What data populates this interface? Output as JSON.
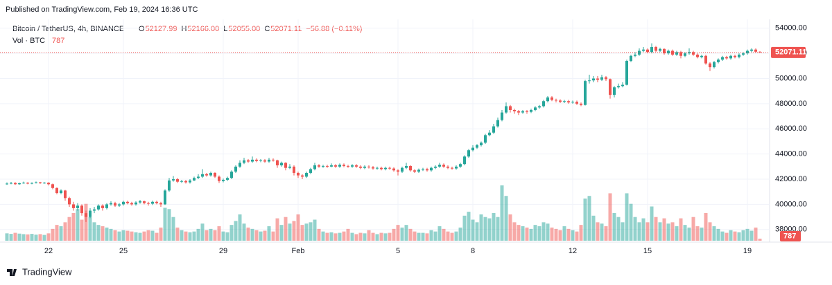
{
  "header": {
    "published": "Published on TradingView.com, Feb 19, 2024 16:36 UTC",
    "symbol": "Bitcoin / TetherUS, 4h, BINANCE",
    "ohlc_letters": [
      "O",
      "H",
      "L",
      "C"
    ],
    "ohlc_text": [
      "52127.99",
      "52166.00",
      "52055.00",
      "52071.11"
    ],
    "change": "−56.88 (−0.11%)",
    "vol_label": "Vol · BTC",
    "vol_text": "787"
  },
  "footer": {
    "brand": "TradingView"
  },
  "chart_data": {
    "type": "candlestick",
    "up_color": "#26a69a",
    "down_color": "#ef5350",
    "ylim": [
      37000,
      54700
    ],
    "yticks": [
      {
        "value": 38000,
        "label": "38000.00"
      },
      {
        "value": 40000,
        "label": "40000.00"
      },
      {
        "value": 42000,
        "label": "42000.00"
      },
      {
        "value": 44000,
        "label": "44000.00"
      },
      {
        "value": 46000,
        "label": "46000.00"
      },
      {
        "value": 48000,
        "label": "48000.00"
      },
      {
        "value": 50000,
        "label": "50000.00"
      },
      {
        "value": 52000,
        "label": "52000.00"
      },
      {
        "value": 54000,
        "label": "54000.00"
      }
    ],
    "xticks": [
      {
        "value": 10,
        "label": "22"
      },
      {
        "value": 28,
        "label": "25"
      },
      {
        "value": 52,
        "label": "29"
      },
      {
        "value": 70,
        "label": "Feb"
      },
      {
        "value": 94,
        "label": "5"
      },
      {
        "value": 112,
        "label": "8"
      },
      {
        "value": 136,
        "label": "12"
      },
      {
        "value": 154,
        "label": "15"
      },
      {
        "value": 178,
        "label": "19"
      }
    ],
    "candles": [
      [
        41600,
        41750,
        41550,
        41650
      ],
      [
        41650,
        41780,
        41600,
        41700
      ],
      [
        41700,
        41760,
        41550,
        41600
      ],
      [
        41600,
        41730,
        41560,
        41680
      ],
      [
        41680,
        41800,
        41640,
        41720
      ],
      [
        41720,
        41760,
        41600,
        41650
      ],
      [
        41650,
        41750,
        41600,
        41700
      ],
      [
        41700,
        41820,
        41660,
        41750
      ],
      [
        41750,
        41790,
        41630,
        41680
      ],
      [
        41680,
        41770,
        41640,
        41720
      ],
      [
        41720,
        41760,
        41500,
        41600
      ],
      [
        41600,
        41650,
        41200,
        41300
      ],
      [
        41300,
        41350,
        40800,
        40900
      ],
      [
        40900,
        41200,
        40800,
        41100
      ],
      [
        41100,
        41150,
        40300,
        40500
      ],
      [
        40500,
        40600,
        39800,
        40000
      ],
      [
        40000,
        40200,
        39500,
        39700
      ],
      [
        39700,
        40100,
        39500,
        39900
      ],
      [
        39900,
        40000,
        39100,
        39300
      ],
      [
        39300,
        39500,
        38600,
        39000
      ],
      [
        39000,
        39700,
        38900,
        39500
      ],
      [
        39500,
        39800,
        39300,
        39600
      ],
      [
        39600,
        40000,
        39500,
        39900
      ],
      [
        39900,
        40000,
        39500,
        39700
      ],
      [
        39700,
        40100,
        39600,
        40000
      ],
      [
        40000,
        40250,
        39900,
        40100
      ],
      [
        40100,
        40200,
        39800,
        39900
      ],
      [
        39900,
        40100,
        39800,
        40000
      ],
      [
        40000,
        40300,
        39900,
        40200
      ],
      [
        40200,
        40300,
        40000,
        40100
      ],
      [
        40100,
        40200,
        39900,
        40000
      ],
      [
        40000,
        40250,
        39900,
        40150
      ],
      [
        40150,
        40350,
        40050,
        40250
      ],
      [
        40250,
        40300,
        40000,
        40100
      ],
      [
        40100,
        40200,
        39900,
        40050
      ],
      [
        40050,
        40300,
        39950,
        40200
      ],
      [
        40200,
        40300,
        40000,
        40100
      ],
      [
        40100,
        40200,
        39800,
        40000
      ],
      [
        40000,
        41200,
        39950,
        41100
      ],
      [
        41100,
        42100,
        41000,
        41900
      ],
      [
        41900,
        42250,
        41800,
        42000
      ],
      [
        42000,
        42100,
        41700,
        41800
      ],
      [
        41800,
        41950,
        41700,
        41850
      ],
      [
        41850,
        41950,
        41650,
        41750
      ],
      [
        41750,
        42000,
        41650,
        41900
      ],
      [
        41900,
        42200,
        41850,
        42100
      ],
      [
        42100,
        42400,
        42000,
        42200
      ],
      [
        42200,
        42800,
        42100,
        42400
      ],
      [
        42400,
        42500,
        42200,
        42300
      ],
      [
        42300,
        42600,
        42200,
        42500
      ],
      [
        42500,
        42550,
        42100,
        42200
      ],
      [
        42200,
        42300,
        41700,
        41850
      ],
      [
        41850,
        42050,
        41750,
        41950
      ],
      [
        41950,
        42200,
        41850,
        42100
      ],
      [
        42100,
        42700,
        42000,
        42600
      ],
      [
        42600,
        43100,
        42500,
        43000
      ],
      [
        43000,
        43500,
        42900,
        43300
      ],
      [
        43300,
        43700,
        43200,
        43500
      ],
      [
        43500,
        43600,
        43300,
        43400
      ],
      [
        43400,
        43800,
        43300,
        43550
      ],
      [
        43550,
        43650,
        43350,
        43450
      ],
      [
        43450,
        43600,
        43350,
        43500
      ],
      [
        43500,
        43600,
        43300,
        43400
      ],
      [
        43400,
        43700,
        43300,
        43550
      ],
      [
        43550,
        43650,
        43400,
        43500
      ],
      [
        43500,
        43550,
        42900,
        43100
      ],
      [
        43100,
        43400,
        43000,
        43300
      ],
      [
        43300,
        43350,
        42700,
        42900
      ],
      [
        42900,
        43200,
        42800,
        43000
      ],
      [
        43000,
        43100,
        42300,
        42500
      ],
      [
        42500,
        42600,
        42100,
        42300
      ],
      [
        42300,
        42400,
        42000,
        42200
      ],
      [
        42200,
        42600,
        42100,
        42500
      ],
      [
        42500,
        42900,
        42400,
        42800
      ],
      [
        42800,
        43300,
        42700,
        43100
      ],
      [
        43100,
        43200,
        42900,
        43000
      ],
      [
        43000,
        43150,
        42900,
        43050
      ],
      [
        43050,
        43150,
        42900,
        43000
      ],
      [
        43000,
        43250,
        42950,
        43100
      ],
      [
        43100,
        43200,
        42900,
        43000
      ],
      [
        43000,
        43250,
        42900,
        43150
      ],
      [
        43150,
        43250,
        42950,
        43050
      ],
      [
        43050,
        43150,
        42900,
        43000
      ],
      [
        43000,
        43200,
        42900,
        43100
      ],
      [
        43100,
        43200,
        42900,
        43000
      ],
      [
        43000,
        43100,
        42800,
        42900
      ],
      [
        42900,
        43100,
        42800,
        43000
      ],
      [
        43000,
        43100,
        42850,
        42950
      ],
      [
        42950,
        43050,
        42750,
        42850
      ],
      [
        42850,
        43000,
        42750,
        42900
      ],
      [
        42900,
        43000,
        42700,
        42800
      ],
      [
        42800,
        43000,
        42700,
        42900
      ],
      [
        42900,
        43000,
        42750,
        42850
      ],
      [
        42850,
        42950,
        42600,
        42700
      ],
      [
        42700,
        42800,
        42300,
        42600
      ],
      [
        42600,
        43000,
        42500,
        42900
      ],
      [
        42900,
        43300,
        42800,
        43050
      ],
      [
        43050,
        43100,
        42600,
        42700
      ],
      [
        42700,
        42800,
        42500,
        42600
      ],
      [
        42600,
        42850,
        42500,
        42750
      ],
      [
        42750,
        42900,
        42650,
        42800
      ],
      [
        42800,
        42900,
        42600,
        42700
      ],
      [
        42700,
        43000,
        42600,
        42900
      ],
      [
        42900,
        43100,
        42800,
        43000
      ],
      [
        43000,
        43300,
        42900,
        43150
      ],
      [
        43150,
        43250,
        42900,
        43000
      ],
      [
        43000,
        43100,
        42800,
        42900
      ],
      [
        42900,
        43000,
        42750,
        42850
      ],
      [
        42850,
        43100,
        42750,
        43000
      ],
      [
        43000,
        43300,
        42900,
        43200
      ],
      [
        43200,
        43900,
        43100,
        43800
      ],
      [
        43800,
        44400,
        43700,
        44300
      ],
      [
        44300,
        44700,
        44200,
        44500
      ],
      [
        44500,
        44800,
        44400,
        44700
      ],
      [
        44700,
        45000,
        44600,
        44900
      ],
      [
        44900,
        45600,
        44800,
        45500
      ],
      [
        45500,
        45900,
        45400,
        45700
      ],
      [
        45700,
        46400,
        45600,
        46200
      ],
      [
        46200,
        46900,
        46100,
        46700
      ],
      [
        46700,
        47500,
        46600,
        47300
      ],
      [
        47300,
        48100,
        47200,
        47800
      ],
      [
        47800,
        47900,
        47300,
        47500
      ],
      [
        47500,
        47600,
        47200,
        47400
      ],
      [
        47400,
        47500,
        47100,
        47300
      ],
      [
        47300,
        47500,
        47200,
        47400
      ],
      [
        47400,
        47500,
        47200,
        47350
      ],
      [
        47350,
        47600,
        47250,
        47500
      ],
      [
        47500,
        47800,
        47400,
        47700
      ],
      [
        47700,
        47900,
        47600,
        47800
      ],
      [
        47800,
        48300,
        47700,
        48200
      ],
      [
        48200,
        48600,
        48100,
        48500
      ],
      [
        48500,
        48600,
        48200,
        48300
      ],
      [
        48300,
        48400,
        48100,
        48250
      ],
      [
        48250,
        48350,
        48050,
        48150
      ],
      [
        48150,
        48300,
        48050,
        48200
      ],
      [
        48200,
        48300,
        48000,
        48100
      ],
      [
        48100,
        48250,
        48000,
        48150
      ],
      [
        48150,
        48250,
        47900,
        48000
      ],
      [
        48000,
        48100,
        47800,
        47900
      ],
      [
        47900,
        49900,
        47850,
        49800
      ],
      [
        49800,
        50300,
        49600,
        49850
      ],
      [
        49850,
        50200,
        49700,
        50000
      ],
      [
        50000,
        50200,
        49700,
        49900
      ],
      [
        49900,
        50300,
        49800,
        50100
      ],
      [
        50100,
        50200,
        49800,
        49950
      ],
      [
        49950,
        50000,
        48400,
        48700
      ],
      [
        48700,
        49400,
        48500,
        49300
      ],
      [
        49300,
        49600,
        49200,
        49400
      ],
      [
        49400,
        49700,
        49300,
        49500
      ],
      [
        49500,
        51500,
        49450,
        51400
      ],
      [
        51400,
        51900,
        51300,
        51800
      ],
      [
        51800,
        52100,
        51700,
        51900
      ],
      [
        51900,
        52400,
        51800,
        52200
      ],
      [
        52200,
        52500,
        52100,
        52300
      ],
      [
        52300,
        52400,
        52000,
        52100
      ],
      [
        52100,
        52800,
        52000,
        52500
      ],
      [
        52500,
        52600,
        52100,
        52200
      ],
      [
        52200,
        52450,
        52100,
        52350
      ],
      [
        52350,
        52400,
        51900,
        52000
      ],
      [
        52000,
        52300,
        51900,
        52200
      ],
      [
        52200,
        52300,
        51800,
        51900
      ],
      [
        51900,
        52200,
        51800,
        52100
      ],
      [
        52100,
        52200,
        51600,
        51800
      ],
      [
        51800,
        52100,
        51700,
        52000
      ],
      [
        52000,
        52400,
        51900,
        52100
      ],
      [
        52100,
        52200,
        51800,
        51900
      ],
      [
        51900,
        52000,
        51600,
        51700
      ],
      [
        51700,
        51900,
        51600,
        51800
      ],
      [
        51800,
        51900,
        51100,
        51200
      ],
      [
        51200,
        51300,
        50600,
        50900
      ],
      [
        50900,
        51400,
        50800,
        51300
      ],
      [
        51300,
        51600,
        51200,
        51500
      ],
      [
        51500,
        51800,
        51400,
        51700
      ],
      [
        51700,
        51800,
        51500,
        51600
      ],
      [
        51600,
        51900,
        51500,
        51800
      ],
      [
        51800,
        51900,
        51600,
        51700
      ],
      [
        51700,
        52000,
        51600,
        51900
      ],
      [
        51900,
        52100,
        51800,
        52000
      ],
      [
        52000,
        52300,
        51900,
        52200
      ],
      [
        52200,
        52400,
        52100,
        52300
      ],
      [
        52300,
        52400,
        52050,
        52127.99
      ],
      [
        52127.99,
        52166,
        52055,
        52071.11
      ]
    ],
    "volume": [
      2800,
      2600,
      3000,
      2700,
      2500,
      2400,
      2600,
      2300,
      2500,
      2200,
      2800,
      4500,
      6000,
      5500,
      7000,
      9000,
      10500,
      12000,
      8000,
      14000,
      9000,
      7000,
      6000,
      5500,
      5000,
      4500,
      4000,
      3500,
      4000,
      3800,
      3500,
      3200,
      3000,
      3500,
      4000,
      3800,
      3000,
      5000,
      12500,
      12000,
      9000,
      5000,
      4000,
      3500,
      3200,
      3500,
      4500,
      6500,
      4000,
      4500,
      4000,
      5500,
      3500,
      3200,
      6000,
      7500,
      10000,
      6500,
      5000,
      4500,
      4000,
      3500,
      3800,
      5500,
      3500,
      8500,
      6000,
      9000,
      6500,
      7500,
      10000,
      6000,
      6500,
      7000,
      8000,
      4500,
      3500,
      3000,
      3200,
      2800,
      3000,
      3500,
      4500,
      3000,
      2500,
      3000,
      2800,
      4000,
      3000,
      2500,
      3000,
      2800,
      3000,
      4500,
      6000,
      5000,
      6000,
      4500,
      3500,
      3000,
      3000,
      2800,
      4000,
      3500,
      5500,
      4500,
      3500,
      3000,
      3500,
      5000,
      9500,
      11000,
      8000,
      7000,
      10000,
      9000,
      8500,
      10500,
      9000,
      21000,
      17000,
      10000,
      7000,
      6000,
      5500,
      5000,
      4500,
      6000,
      5500,
      7000,
      6500,
      5000,
      4500,
      4000,
      5500,
      4500,
      4000,
      3500,
      6000,
      16000,
      17000,
      9500,
      7000,
      6500,
      5500,
      18000,
      10500,
      9000,
      7000,
      18000,
      14000,
      9000,
      7000,
      8500,
      7000,
      13000,
      9000,
      7000,
      8500,
      6500,
      7000,
      5500,
      8500,
      6000,
      5000,
      9000,
      5500,
      5000,
      10500,
      7000,
      5500,
      4500,
      3500,
      3000,
      4000,
      3500,
      3200,
      4000,
      4500,
      3800,
      5000,
      787
    ]
  }
}
